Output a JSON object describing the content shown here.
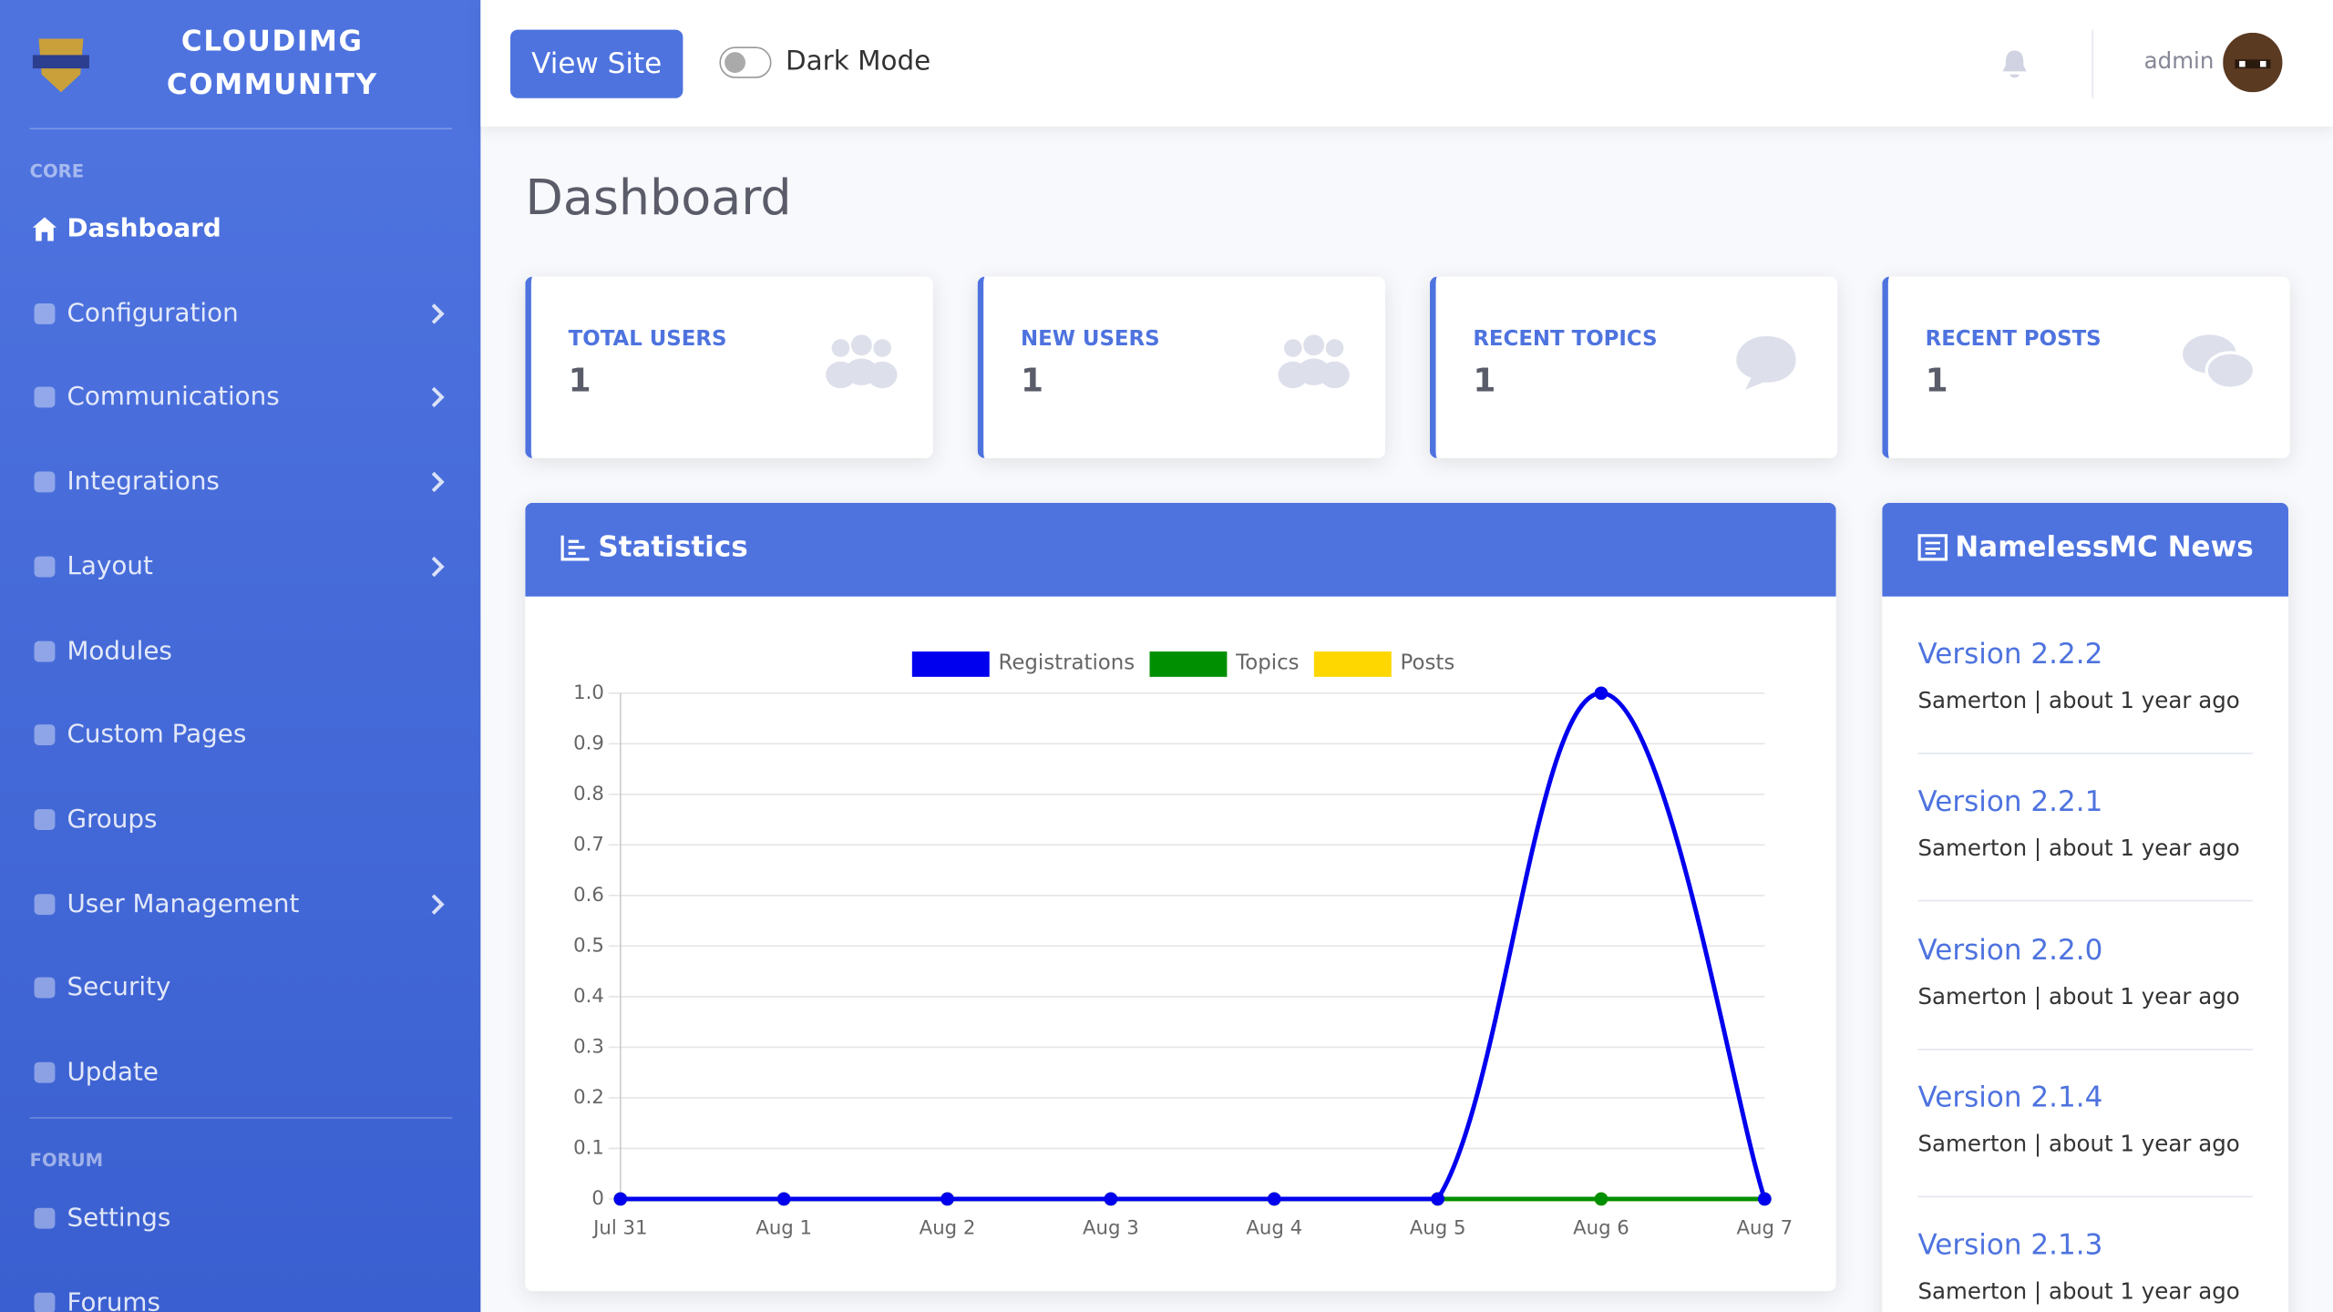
{
  "sidebar": {
    "brand": "CLOUDIMG COMMUNITY",
    "sections": [
      {
        "heading": "CORE",
        "items": [
          {
            "label": "Dashboard",
            "active": true,
            "submenu": false
          },
          {
            "label": "Configuration",
            "active": false,
            "submenu": true
          },
          {
            "label": "Communications",
            "active": false,
            "submenu": true
          },
          {
            "label": "Integrations",
            "active": false,
            "submenu": true
          },
          {
            "label": "Layout",
            "active": false,
            "submenu": true
          },
          {
            "label": "Modules",
            "active": false,
            "submenu": false
          },
          {
            "label": "Custom Pages",
            "active": false,
            "submenu": false
          },
          {
            "label": "Groups",
            "active": false,
            "submenu": false
          },
          {
            "label": "User Management",
            "active": false,
            "submenu": true
          },
          {
            "label": "Security",
            "active": false,
            "submenu": false
          },
          {
            "label": "Update",
            "active": false,
            "submenu": false
          }
        ]
      },
      {
        "heading": "FORUM",
        "items": [
          {
            "label": "Settings",
            "active": false,
            "submenu": false
          },
          {
            "label": "Forums",
            "active": false,
            "submenu": false
          }
        ]
      }
    ]
  },
  "topbar": {
    "button": "View Site",
    "toggle": "Dark Mode",
    "user": "admin"
  },
  "page_title": "Dashboard",
  "cards": [
    {
      "label": "TOTAL USERS",
      "value": 1
    },
    {
      "label": "NEW USERS",
      "value": 1
    },
    {
      "label": "RECENT TOPICS",
      "value": 1
    },
    {
      "label": "RECENT POSTS",
      "value": 1
    }
  ],
  "chart_data": {
    "type": "line",
    "title": "Statistics",
    "categories": [
      "Jul 31",
      "Aug 1",
      "Aug 2",
      "Aug 3",
      "Aug 4",
      "Aug 5",
      "Aug 6",
      "Aug 7"
    ],
    "series": [
      {
        "name": "Registrations",
        "color": "#0000ee",
        "values": [
          0,
          0,
          0,
          0,
          0,
          0,
          1,
          0
        ]
      },
      {
        "name": "Topics",
        "color": "#008f00",
        "values": [
          0,
          0,
          0,
          0,
          0,
          0,
          0,
          0
        ]
      },
      {
        "name": "Posts",
        "color": "#ffd700",
        "values": [
          0,
          0,
          0,
          0,
          0,
          0,
          0,
          0
        ]
      }
    ],
    "ylim": [
      0,
      1
    ],
    "yticks": [
      0,
      0.1,
      0.2,
      0.3,
      0.4,
      0.5,
      0.6,
      0.7,
      0.8,
      0.9,
      {
        "value": 1,
        "label": "1.0"
      }
    ],
    "grid": true,
    "legend": "top"
  },
  "news": {
    "title": "NamelessMC News",
    "items": [
      {
        "title": "Version 2.2.2",
        "meta": "Samerton | about 1 year ago"
      },
      {
        "title": "Version 2.2.1",
        "meta": "Samerton | about 1 year ago"
      },
      {
        "title": "Version 2.2.0",
        "meta": "Samerton | about 1 year ago"
      },
      {
        "title": "Version 2.1.4",
        "meta": "Samerton | about 1 year ago"
      },
      {
        "title": "Version 2.1.3",
        "meta": "Samerton | about 1 year ago"
      }
    ]
  }
}
